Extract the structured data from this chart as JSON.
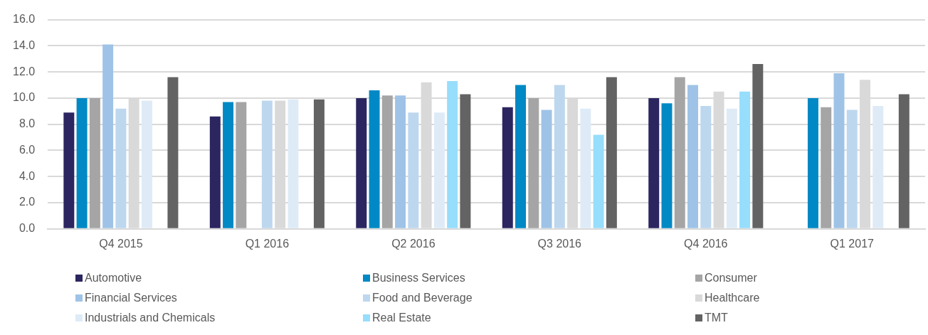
{
  "chart_data": {
    "type": "bar",
    "categories": [
      "Q4 2015",
      "Q1 2016",
      "Q2 2016",
      "Q3 2016",
      "Q4 2016",
      "Q1 2017"
    ],
    "series": [
      {
        "name": "Automotive",
        "color": "#2b2560",
        "values": [
          8.9,
          8.6,
          10.0,
          9.3,
          10.0,
          null
        ]
      },
      {
        "name": "Business Services",
        "color": "#0089c4",
        "values": [
          10.0,
          9.7,
          10.6,
          11.0,
          9.6,
          10.0
        ]
      },
      {
        "name": "Consumer",
        "color": "#a5a5a5",
        "values": [
          10.0,
          9.7,
          10.2,
          10.0,
          11.6,
          9.3
        ]
      },
      {
        "name": "Financial Services",
        "color": "#9fc3e7",
        "values": [
          14.1,
          null,
          10.2,
          9.1,
          11.0,
          11.9
        ]
      },
      {
        "name": "Food and Beverage",
        "color": "#bdd7ee",
        "values": [
          9.2,
          9.8,
          8.9,
          11.0,
          9.4,
          9.1
        ]
      },
      {
        "name": "Healthcare",
        "color": "#d9d9d9",
        "values": [
          10.0,
          9.8,
          11.2,
          10.0,
          10.5,
          11.4
        ]
      },
      {
        "name": "Industrials and Chemicals",
        "color": "#deebf7",
        "values": [
          9.8,
          9.9,
          8.9,
          9.2,
          9.2,
          9.4
        ]
      },
      {
        "name": "Real Estate",
        "color": "#97ddfc",
        "values": [
          null,
          null,
          11.3,
          7.2,
          10.5,
          null
        ]
      },
      {
        "name": "TMT",
        "color": "#636363",
        "values": [
          11.6,
          9.9,
          10.3,
          11.6,
          12.6,
          10.3
        ]
      }
    ],
    "ylim": [
      0,
      16
    ],
    "yticks": [
      {
        "value": 0,
        "label": "0.0"
      },
      {
        "value": 2,
        "label": "2.0"
      },
      {
        "value": 4,
        "label": "4.0"
      },
      {
        "value": 6,
        "label": "6.0"
      },
      {
        "value": 8,
        "label": "8.0"
      },
      {
        "value": 10,
        "label": "10.0"
      },
      {
        "value": 12,
        "label": "12.0"
      },
      {
        "value": 14,
        "label": "14.0"
      },
      {
        "value": 16,
        "label": "16.0"
      }
    ],
    "grid": "y",
    "legend": "bottom"
  }
}
